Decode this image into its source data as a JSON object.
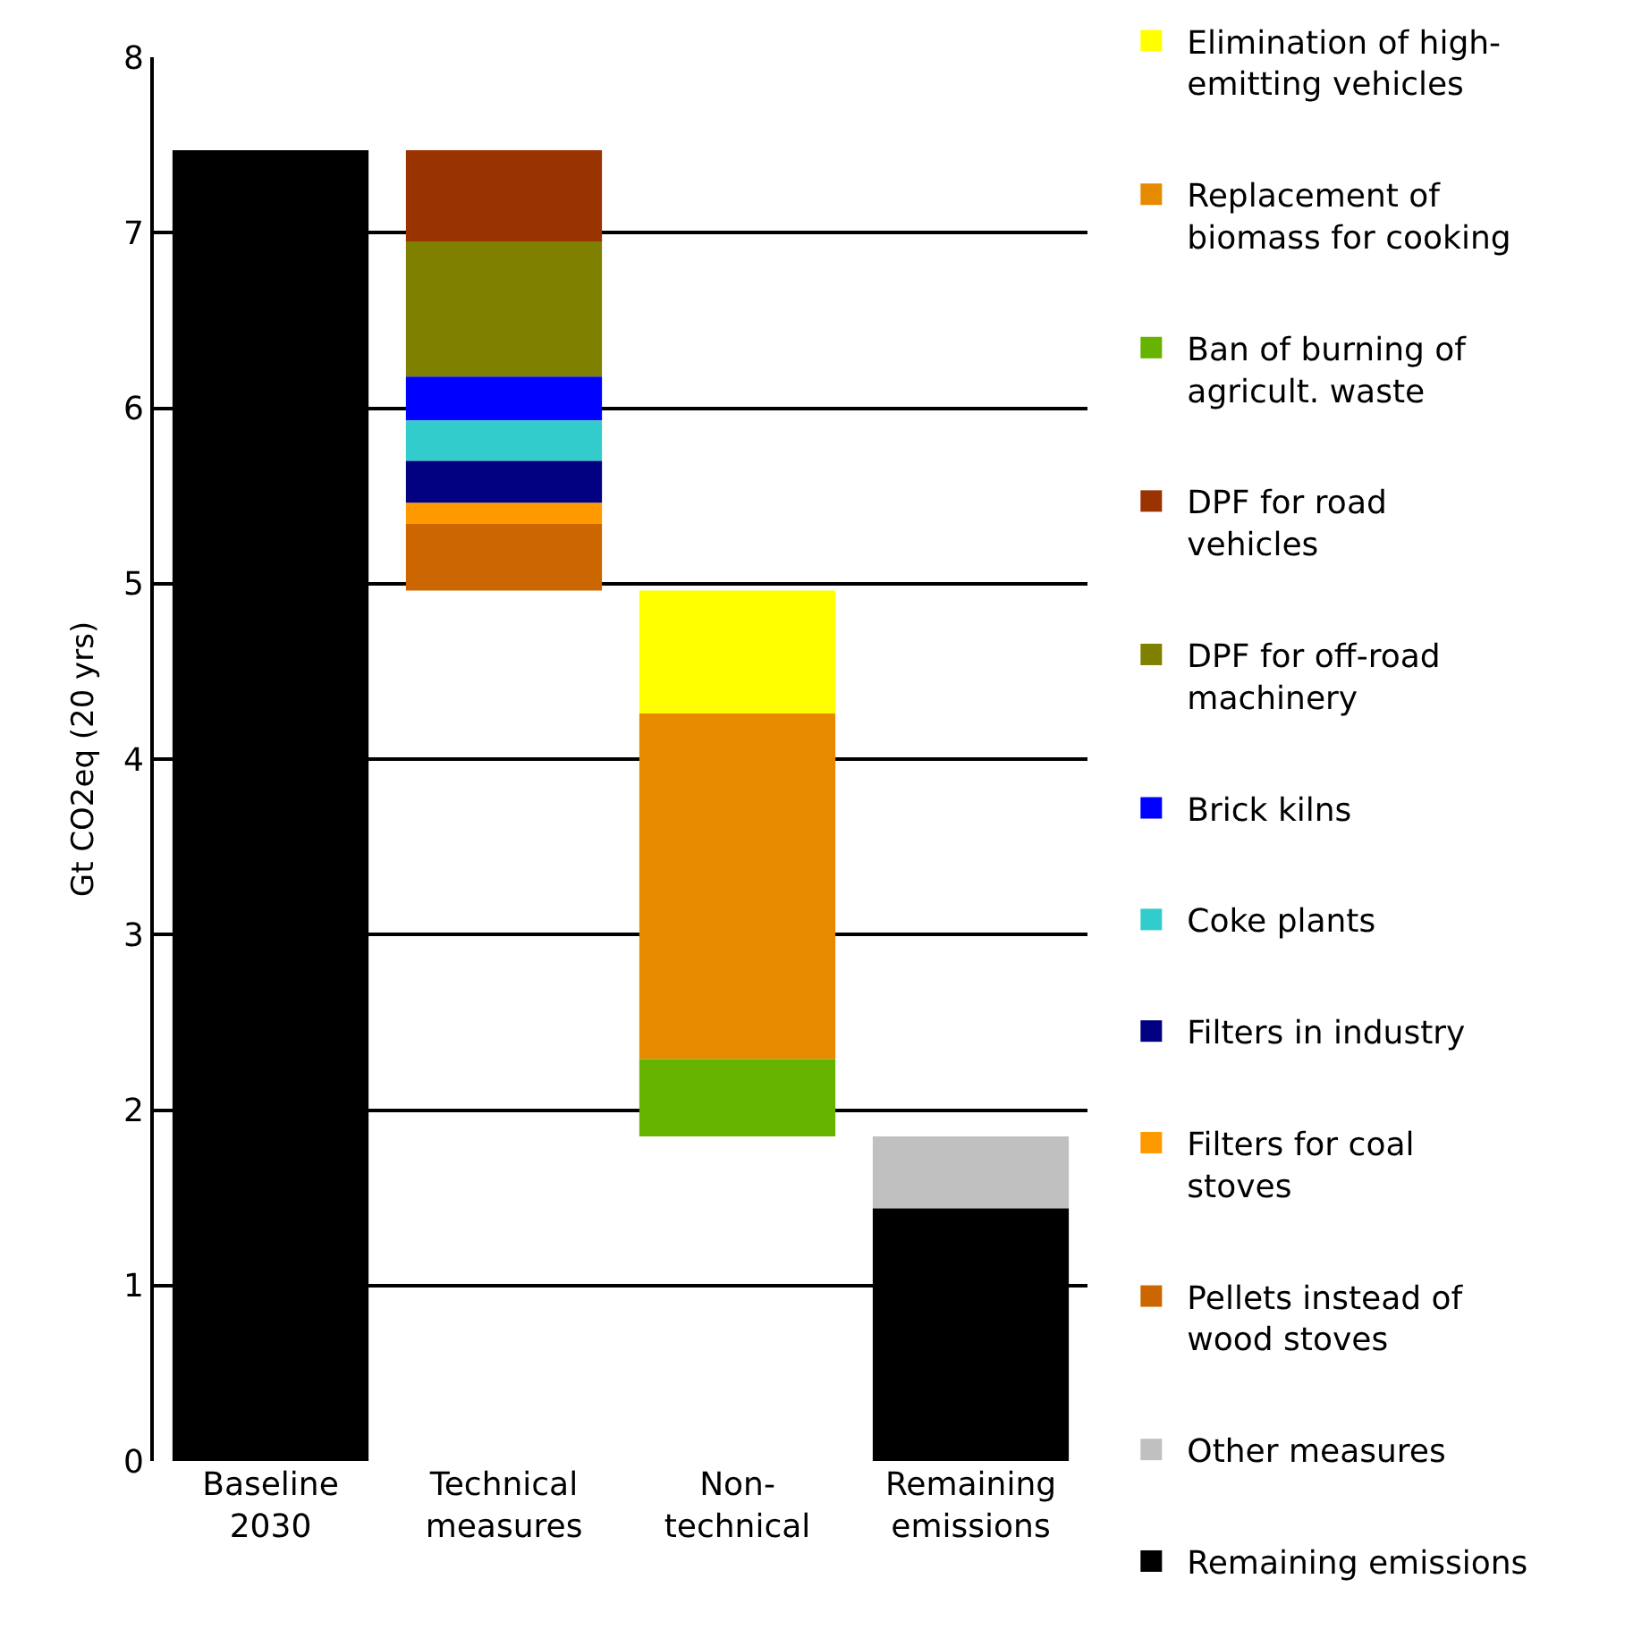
{
  "chart_data": {
    "type": "bar",
    "ylabel": "Gt CO2eq (20 yrs)",
    "categories": [
      "Baseline 2030",
      "Technical measures",
      "Non-technical",
      "Remaining emissions"
    ],
    "series": [
      {
        "name": "Remaining emissions",
        "color": "#000000",
        "values": [
          7.47,
          null,
          null,
          1.44
        ],
        "base": [
          0,
          null,
          null,
          0
        ]
      },
      {
        "name": "Other measures",
        "color": "#c0c0c0",
        "values": [
          null,
          null,
          null,
          0.41
        ],
        "base": [
          null,
          null,
          null,
          1.44
        ]
      },
      {
        "name": "Pellets instead of wood stoves",
        "color": "#cc6600",
        "values": [
          null,
          0.38,
          null,
          null
        ],
        "base": [
          null,
          4.96,
          null,
          null
        ]
      },
      {
        "name": "Filters for coal stoves",
        "color": "#ff9900",
        "values": [
          null,
          0.12,
          null,
          null
        ],
        "base": [
          null,
          5.34,
          null,
          null
        ]
      },
      {
        "name": "Filters in industry",
        "color": "#000080",
        "values": [
          null,
          0.24,
          null,
          null
        ],
        "base": [
          null,
          5.46,
          null,
          null
        ]
      },
      {
        "name": "Coke plants",
        "color": "#33cccc",
        "values": [
          null,
          0.23,
          null,
          null
        ],
        "base": [
          null,
          5.7,
          null,
          null
        ]
      },
      {
        "name": "Brick kilns",
        "color": "#0000ff",
        "values": [
          null,
          0.25,
          null,
          null
        ],
        "base": [
          null,
          5.93,
          null,
          null
        ]
      },
      {
        "name": "DPF for off-road machinery",
        "color": "#808000",
        "values": [
          null,
          0.77,
          null,
          null
        ],
        "base": [
          null,
          6.18,
          null,
          null
        ]
      },
      {
        "name": "DPF for road vehicles",
        "color": "#993300",
        "values": [
          null,
          0.52,
          null,
          null
        ],
        "base": [
          null,
          6.95,
          null,
          null
        ]
      },
      {
        "name": "Ban of burning of agricult. waste",
        "color": "#66b300",
        "values": [
          null,
          null,
          0.44,
          null
        ],
        "base": [
          null,
          null,
          1.85,
          null
        ]
      },
      {
        "name": "Replacement of biomass for cooking",
        "color": "#e68a00",
        "values": [
          null,
          null,
          1.97,
          null
        ],
        "base": [
          null,
          null,
          2.29,
          null
        ]
      },
      {
        "name": "Elimination of high-emitting vehicles",
        "color": "#ffff00",
        "values": [
          null,
          null,
          0.7,
          null
        ],
        "base": [
          null,
          null,
          4.26,
          null
        ]
      }
    ],
    "ylim": [
      0,
      8
    ],
    "yticks": [
      0,
      1,
      2,
      3,
      4,
      5,
      6,
      7,
      8
    ],
    "grid": "y",
    "legend": "right"
  }
}
